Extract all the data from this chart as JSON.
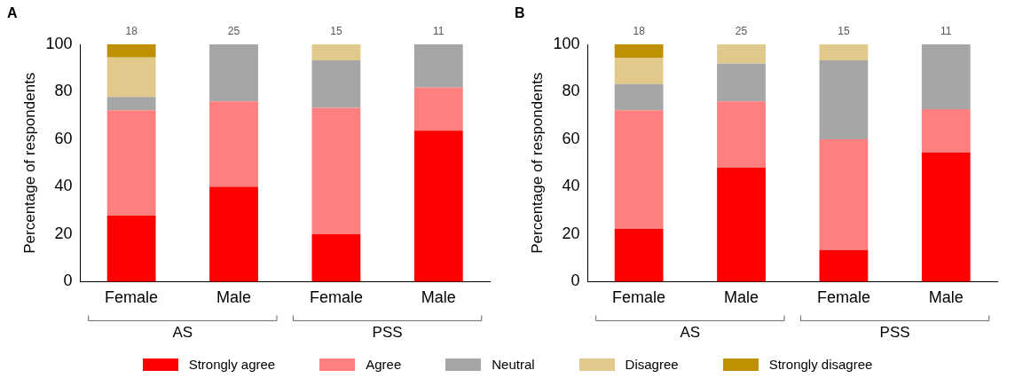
{
  "chart_data": [
    {
      "type": "bar",
      "title": "A",
      "ylabel": "Percentage of respondents",
      "categories": [
        "Female",
        "Male",
        "Female",
        "Male"
      ],
      "stacked": true,
      "ylim": [
        0,
        100
      ],
      "yticks": [
        0,
        20,
        40,
        60,
        80,
        100
      ],
      "grid": false,
      "legend": "bottom",
      "annotations": [
        "18",
        "25",
        "15",
        "11",
        "AS",
        "PSS"
      ],
      "series": [
        {
          "name": "Strongly agree",
          "color": "#ff0000",
          "values": [
            27.8,
            40,
            20,
            63.6
          ]
        },
        {
          "name": "Agree",
          "color": "#ff7f7f",
          "values": [
            44.4,
            36,
            53.3,
            18.2
          ]
        },
        {
          "name": "Neutral",
          "color": "#a6a6a6",
          "values": [
            5.6,
            24,
            20,
            18.2
          ]
        },
        {
          "name": "Disagree",
          "color": "#e0c98a",
          "values": [
            16.7,
            0,
            6.7,
            0
          ]
        },
        {
          "name": "Strongly disagree",
          "color": "#bf9000",
          "values": [
            5.6,
            0,
            0,
            0
          ]
        }
      ]
    },
    {
      "type": "bar",
      "title": "B",
      "ylabel": "Percentage of respondents",
      "categories": [
        "Female",
        "Male",
        "Female",
        "Male"
      ],
      "stacked": true,
      "ylim": [
        0,
        100
      ],
      "yticks": [
        0,
        20,
        40,
        60,
        80,
        100
      ],
      "grid": false,
      "legend": "bottom",
      "annotations": [
        "18",
        "25",
        "15",
        "11",
        "AS",
        "PSS"
      ],
      "series": [
        {
          "name": "Strongly agree",
          "color": "#ff0000",
          "values": [
            22.2,
            48,
            13.3,
            54.5
          ]
        },
        {
          "name": "Agree",
          "color": "#ff7f7f",
          "values": [
            50,
            28,
            46.7,
            18.2
          ]
        },
        {
          "name": "Neutral",
          "color": "#a6a6a6",
          "values": [
            11.1,
            16,
            33.3,
            27.3
          ]
        },
        {
          "name": "Disagree",
          "color": "#e0c98a",
          "values": [
            11.1,
            8,
            6.7,
            0
          ]
        },
        {
          "name": "Strongly disagree",
          "color": "#bf9000",
          "values": [
            5.6,
            0,
            0,
            0
          ]
        }
      ]
    }
  ]
}
